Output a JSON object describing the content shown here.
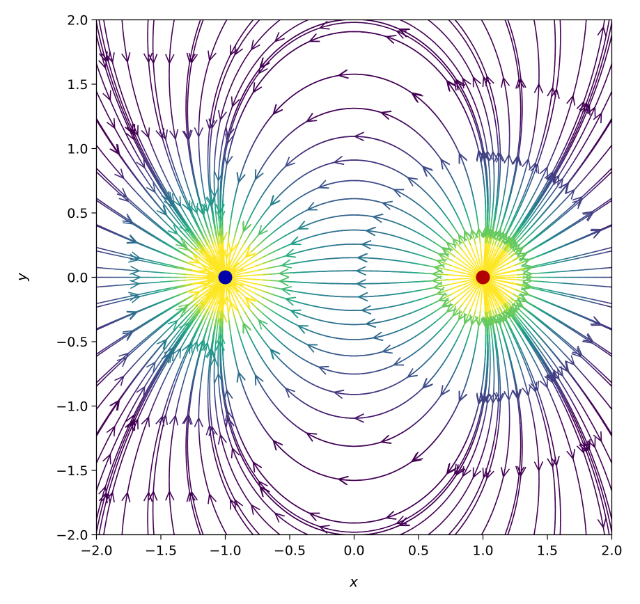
{
  "chart_data": {
    "type": "streamplot",
    "title": "",
    "xlabel": "x",
    "ylabel": "y",
    "xlim": [
      -2.0,
      2.0
    ],
    "ylim": [
      -2.0,
      2.0
    ],
    "x_ticks": [
      "−2.0",
      "−1.5",
      "−1.0",
      "−0.5",
      "0.0",
      "0.5",
      "1.0",
      "1.5",
      "2.0"
    ],
    "y_ticks": [
      "−2.0",
      "−1.5",
      "−1.0",
      "−0.5",
      "0.0",
      "0.5",
      "1.0",
      "1.5",
      "2.0"
    ],
    "x_tick_values": [
      -2.0,
      -1.5,
      -1.0,
      -0.5,
      0.0,
      0.5,
      1.0,
      1.5,
      2.0
    ],
    "y_tick_values": [
      -2.0,
      -1.5,
      -1.0,
      -0.5,
      0.0,
      0.5,
      1.0,
      1.5,
      2.0
    ],
    "field": "electric dipole",
    "charges": [
      {
        "x": 1.0,
        "y": 0.0,
        "q": 1,
        "color": "#b30000"
      },
      {
        "x": -1.0,
        "y": 0.0,
        "q": -1,
        "color": "#0000aa"
      }
    ],
    "colormap": "viridis",
    "grid": false,
    "legend": "none"
  }
}
